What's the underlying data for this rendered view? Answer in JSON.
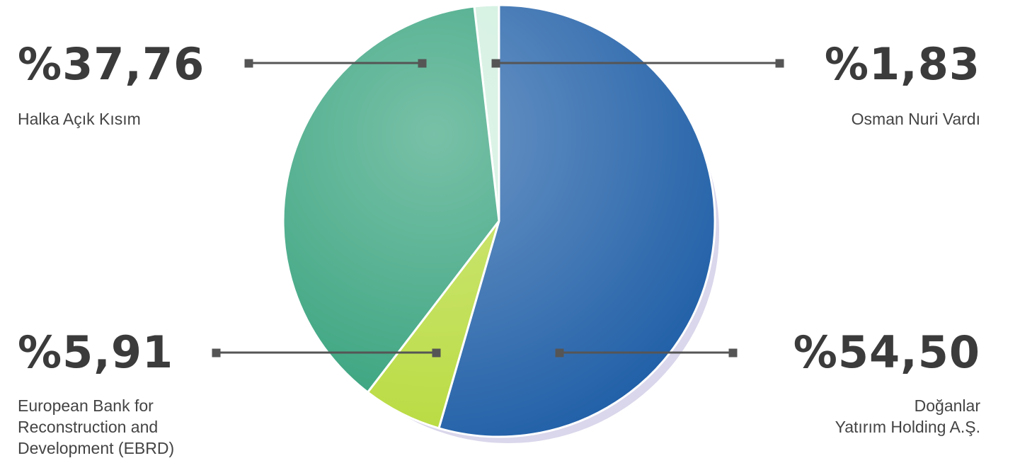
{
  "chart_data": {
    "type": "pie",
    "categories": [
      "Osman Nuri Vardı",
      "Doğanlar\nYatırım Holding A.Ş.",
      "European Bank for\nReconstruction and\nDevelopment (EBRD)",
      "Halka Açık Kısım"
    ],
    "values": [
      1.83,
      54.5,
      5.91,
      37.76
    ],
    "value_labels": [
      "%1,83",
      "%54,50",
      "%5,91",
      "%37,76"
    ],
    "colors": [
      "#cdeedd",
      "#1d5da6",
      "#b7da3a",
      "#2f9f78"
    ]
  }
}
